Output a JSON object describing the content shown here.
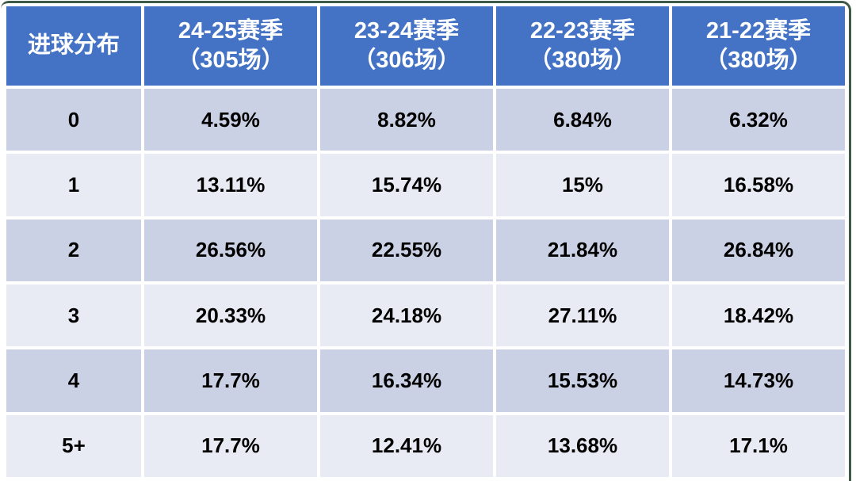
{
  "colors": {
    "header_bg": "#4472c4",
    "header_text": "#ffffff",
    "row_dark": "#cbd1e5",
    "row_light": "#e9ebf4",
    "cell_text": "#000000",
    "frame_border": "#3e5a49",
    "gutter": "#ffffff"
  },
  "table": {
    "corner_header": "进球分布",
    "season_headers": [
      {
        "line1": "24-25赛季",
        "line2": "（305场）"
      },
      {
        "line1": "23-24赛季",
        "line2": "（306场）"
      },
      {
        "line1": "22-23赛季",
        "line2": "（380场）"
      },
      {
        "line1": "21-22赛季",
        "line2": "（380场）"
      }
    ],
    "rows": [
      {
        "goals": "0",
        "values": [
          "4.59%",
          "8.82%",
          "6.84%",
          "6.32%"
        ]
      },
      {
        "goals": "1",
        "values": [
          "13.11%",
          "15.74%",
          "15%",
          "16.58%"
        ]
      },
      {
        "goals": "2",
        "values": [
          "26.56%",
          "22.55%",
          "21.84%",
          "26.84%"
        ]
      },
      {
        "goals": "3",
        "values": [
          "20.33%",
          "24.18%",
          "27.11%",
          "18.42%"
        ]
      },
      {
        "goals": "4",
        "values": [
          "17.7%",
          "16.34%",
          "15.53%",
          "14.73%"
        ]
      },
      {
        "goals": "5+",
        "values": [
          "17.7%",
          "12.41%",
          "13.68%",
          "17.1%"
        ]
      }
    ]
  },
  "chart_data": {
    "type": "table",
    "title": "进球分布",
    "categories": [
      "0",
      "1",
      "2",
      "3",
      "4",
      "5+"
    ],
    "series": [
      {
        "name": "24-25赛季（305场）",
        "matches": 305,
        "values_pct": [
          4.59,
          13.11,
          26.56,
          20.33,
          17.7,
          17.7
        ]
      },
      {
        "name": "23-24赛季（306场）",
        "matches": 306,
        "values_pct": [
          8.82,
          15.74,
          22.55,
          24.18,
          16.34,
          12.41
        ]
      },
      {
        "name": "22-23赛季（380场）",
        "matches": 380,
        "values_pct": [
          6.84,
          15,
          21.84,
          27.11,
          15.53,
          13.68
        ]
      },
      {
        "name": "21-22赛季（380场）",
        "matches": 380,
        "values_pct": [
          6.32,
          16.58,
          26.84,
          18.42,
          14.73,
          17.1
        ]
      }
    ],
    "layout": {
      "header_row": true,
      "banded_rows": true,
      "grid": "white-gutters"
    }
  }
}
